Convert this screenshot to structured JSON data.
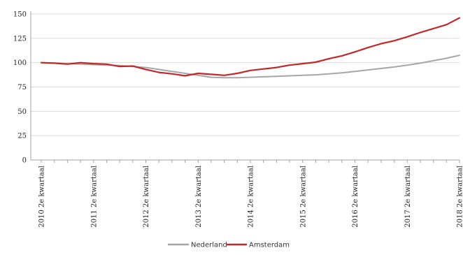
{
  "chart_data": {
    "type": "line",
    "title": "",
    "xlabel": "",
    "ylabel": "",
    "ylim": [
      0,
      150
    ],
    "yticks": [
      0,
      25,
      50,
      75,
      100,
      125,
      150
    ],
    "grid": "horizontal",
    "legend_position": "bottom-center",
    "x_tick_labels": [
      "2010 2e kwartaal",
      "2011 2e kwartaal",
      "2012 2e kwartaal",
      "2013 2e kwartaal",
      "2014 2e kwartaal",
      "2015 2e kwartaal",
      "2016 2e kwartaal",
      "2017 2e kwartaal",
      "2018 2e kwartaal"
    ],
    "quarters": 33,
    "series": [
      {
        "name": "Nederland",
        "color": "#a6a6a6",
        "values": [
          100,
          99.5,
          99,
          98.5,
          98,
          97.5,
          97,
          96,
          95,
          93,
          91,
          89,
          87,
          85,
          84.5,
          84.5,
          85,
          85.5,
          86,
          86.5,
          87,
          87.5,
          88.5,
          89.5,
          91,
          92.5,
          94,
          95.5,
          97.5,
          99.5,
          102,
          104.5,
          107.5
        ]
      },
      {
        "name": "Amsterdam",
        "color": "#c0282c",
        "values": [
          100,
          99.5,
          98.5,
          100,
          99,
          98.5,
          96,
          96.5,
          93,
          90,
          88.5,
          86.5,
          89,
          88,
          87,
          89,
          92,
          93.5,
          95,
          97.5,
          99,
          100.5,
          104,
          107,
          111,
          115.5,
          119.5,
          122.5,
          126.5,
          131,
          135,
          139,
          146
        ]
      }
    ]
  }
}
